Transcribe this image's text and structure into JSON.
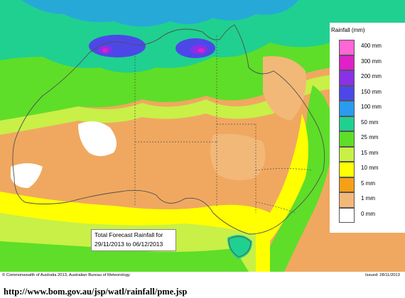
{
  "map": {
    "title_line1": "Total Forecast Rainfall for",
    "title_line2": "29/11/2013 to 06/12/2013",
    "legend_title": "Rainfall (mm)",
    "legend": [
      {
        "label": "400 mm",
        "color": "#ff66d6"
      },
      {
        "label": "300 mm",
        "color": "#e020c8"
      },
      {
        "label": "200 mm",
        "color": "#8a30e6"
      },
      {
        "label": "150 mm",
        "color": "#4c48e8"
      },
      {
        "label": "100 mm",
        "color": "#2a9cf0"
      },
      {
        "label": "50 mm",
        "color": "#20d090"
      },
      {
        "label": "25 mm",
        "color": "#5ede28"
      },
      {
        "label": "15 mm",
        "color": "#c8f046"
      },
      {
        "label": "10 mm",
        "color": "#ffff00"
      },
      {
        "label": "5 mm",
        "color": "#f6a018"
      },
      {
        "label": "1 mm",
        "color": "#f2b878"
      },
      {
        "label": "0 mm",
        "color": "#ffffff"
      }
    ],
    "copyright": "© Commonwealth of Australia 2013, Australian Bureau of Meteorology",
    "issued": "Issued: 28/11/2013"
  },
  "source_url": "http://www.bom.gov.au/jsp/watl/rainfall/pme.jsp"
}
